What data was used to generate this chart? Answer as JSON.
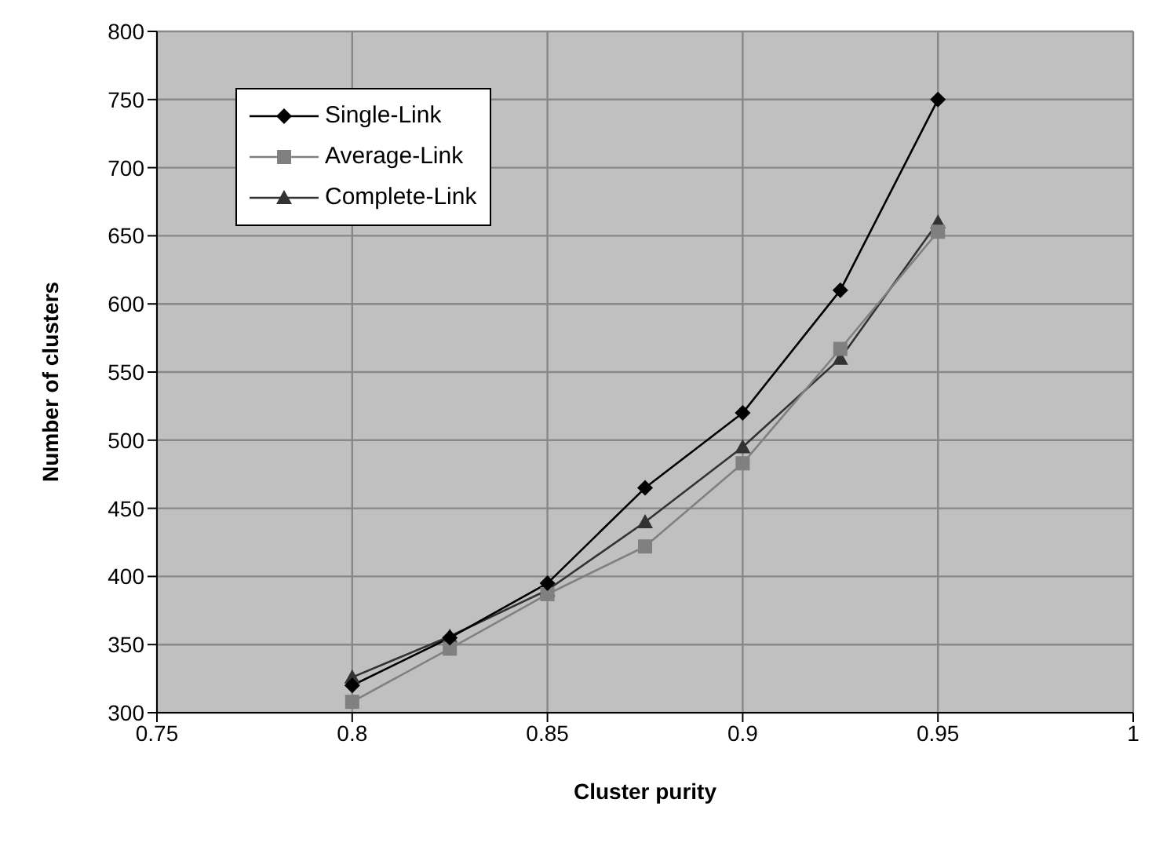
{
  "chart_data": {
    "type": "line",
    "xlabel": "Cluster purity",
    "ylabel": "Number of clusters",
    "x": [
      0.8,
      0.825,
      0.85,
      0.875,
      0.9,
      0.925,
      0.95
    ],
    "series": [
      {
        "name": "Single-Link",
        "color": "#000000",
        "marker": "diamond",
        "values": [
          320,
          355,
          395,
          465,
          520,
          610,
          750
        ]
      },
      {
        "name": "Average-Link",
        "color": "#808080",
        "marker": "square",
        "values": [
          308,
          347,
          387,
          422,
          483,
          567,
          653
        ]
      },
      {
        "name": "Complete-Link",
        "color": "#333333",
        "marker": "triangle",
        "values": [
          326,
          356,
          390,
          440,
          495,
          560,
          660
        ]
      }
    ],
    "xlim": [
      0.75,
      1
    ],
    "xticks": [
      0.75,
      0.8,
      0.85,
      0.9,
      0.95,
      1
    ],
    "ylim": [
      300,
      800
    ],
    "yticks": [
      300,
      350,
      400,
      450,
      500,
      550,
      600,
      650,
      700,
      750,
      800
    ],
    "grid": true,
    "legend": "top left",
    "line_style": "solid"
  }
}
